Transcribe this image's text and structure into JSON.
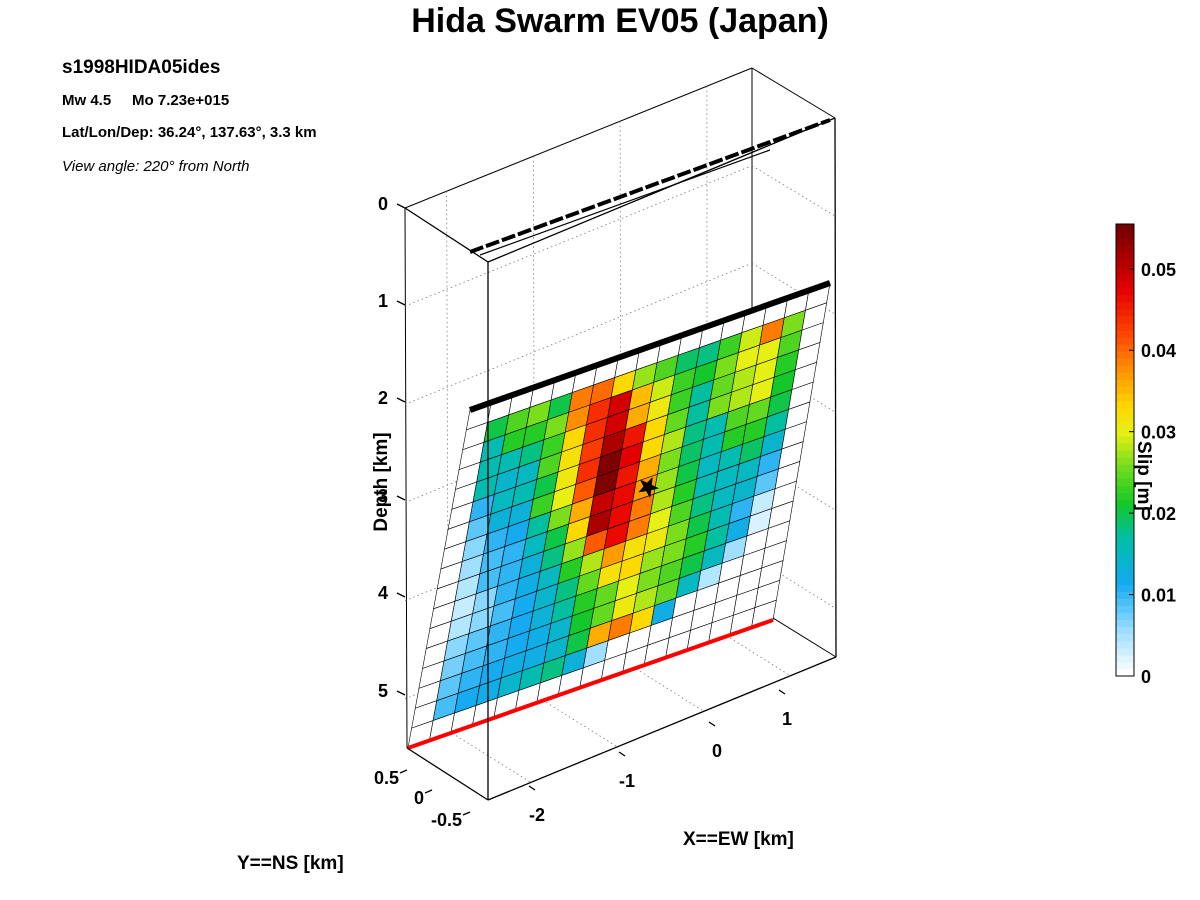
{
  "title": "Hida Swarm EV05 (Japan)",
  "info": {
    "event_id": "s1998HIDA05ides",
    "mw": "Mw 4.5",
    "mo": "Mo 7.23e+015",
    "location": "Lat/Lon/Dep: 36.24°, 137.63°, 3.3 km",
    "view_angle": "View angle: 220° from North"
  },
  "chart_data": {
    "type": "heatmap",
    "title": "Hida Swarm EV05 (Japan)",
    "xlabel": "X==EW [km]",
    "ylabel": "Y==NS [km]",
    "zlabel": "Depth [km]",
    "colorbar_label": "Slip [m]",
    "xlim": [
      -2.5,
      1.5
    ],
    "ylim": [
      -0.5,
      0.5
    ],
    "zlim": [
      0,
      5.5
    ],
    "x_ticks": [
      "-2",
      "-1",
      "0",
      "1"
    ],
    "y_ticks": [
      "0.5",
      "0",
      "-0.5"
    ],
    "z_ticks": [
      "0",
      "1",
      "2",
      "3",
      "4",
      "5"
    ],
    "colorbar_ticks": [
      "0",
      "0.01",
      "0.02",
      "0.03",
      "0.04",
      "0.05"
    ],
    "colorbar_range": [
      0,
      0.0555
    ],
    "grid": true,
    "hypocenter": {
      "x": -0.9,
      "depth": 2.9
    },
    "slip_rows": [
      [
        0,
        0,
        0,
        0,
        0,
        0,
        0,
        0,
        0,
        0,
        0,
        0,
        0,
        0,
        0,
        0,
        0
      ],
      [
        0,
        0.02,
        0.024,
        0.026,
        0.02,
        0.039,
        0.04,
        0.033,
        0.027,
        0.024,
        0.019,
        0.018,
        0.023,
        0.029,
        0.039,
        0.026,
        0
      ],
      [
        0,
        0.016,
        0.022,
        0.022,
        0.026,
        0.038,
        0.044,
        0.049,
        0.035,
        0.029,
        0.023,
        0.021,
        0.026,
        0.03,
        0.03,
        0.024,
        0
      ],
      [
        0,
        0.016,
        0.016,
        0.018,
        0.023,
        0.033,
        0.044,
        0.049,
        0.036,
        0.031,
        0.023,
        0.017,
        0.025,
        0.028,
        0.03,
        0.022,
        0
      ],
      [
        0,
        0.016,
        0.014,
        0.015,
        0.024,
        0.032,
        0.043,
        0.052,
        0.046,
        0.033,
        0.025,
        0.017,
        0.026,
        0.028,
        0.03,
        0.021,
        0
      ],
      [
        0,
        0.01,
        0.015,
        0.016,
        0.02,
        0.031,
        0.044,
        0.055,
        0.048,
        0.033,
        0.028,
        0.018,
        0.016,
        0.024,
        0.025,
        0.02,
        0
      ],
      [
        0,
        0.008,
        0.013,
        0.013,
        0.023,
        0.03,
        0.041,
        0.055,
        0.046,
        0.036,
        0.026,
        0.019,
        0.016,
        0.022,
        0.022,
        0.017,
        0
      ],
      [
        0,
        0.006,
        0.01,
        0.011,
        0.017,
        0.026,
        0.036,
        0.05,
        0.047,
        0.037,
        0.027,
        0.02,
        0.015,
        0.016,
        0.019,
        0.014,
        0
      ],
      [
        0,
        0.005,
        0.009,
        0.01,
        0.015,
        0.02,
        0.033,
        0.052,
        0.047,
        0.039,
        0.028,
        0.022,
        0.016,
        0.015,
        0.015,
        0.01,
        0
      ],
      [
        0,
        0.004,
        0.009,
        0.01,
        0.013,
        0.018,
        0.027,
        0.041,
        0.047,
        0.039,
        0.03,
        0.024,
        0.018,
        0.015,
        0.014,
        0.008,
        0
      ],
      [
        0,
        0.003,
        0.006,
        0.01,
        0.012,
        0.015,
        0.022,
        0.028,
        0.037,
        0.032,
        0.031,
        0.026,
        0.02,
        0.016,
        0.01,
        0.003,
        0
      ],
      [
        0,
        0.004,
        0.006,
        0.009,
        0.011,
        0.014,
        0.018,
        0.025,
        0.032,
        0.033,
        0.027,
        0.026,
        0.022,
        0.017,
        0.012,
        0.002,
        0
      ],
      [
        0,
        0.006,
        0.008,
        0.01,
        0.011,
        0.013,
        0.017,
        0.022,
        0.025,
        0.03,
        0.026,
        0.024,
        0.02,
        0.015,
        0.005,
        0,
        0
      ],
      [
        0,
        0.007,
        0.009,
        0.01,
        0.011,
        0.012,
        0.014,
        0.021,
        0.025,
        0.031,
        0.028,
        0.025,
        0.015,
        0.004,
        0,
        0,
        0
      ],
      [
        0,
        0.008,
        0.01,
        0.011,
        0.012,
        0.012,
        0.014,
        0.02,
        0.036,
        0.039,
        0.033,
        0.012,
        0,
        0,
        0,
        0,
        0
      ],
      [
        0,
        0.009,
        0.011,
        0.012,
        0.014,
        0.016,
        0.018,
        0.013,
        0.005,
        0,
        0,
        0,
        0,
        0,
        0,
        0,
        0
      ],
      [
        0,
        0,
        0,
        0,
        0,
        0,
        0,
        0,
        0,
        0,
        0,
        0,
        0,
        0,
        0,
        0,
        0
      ]
    ]
  }
}
